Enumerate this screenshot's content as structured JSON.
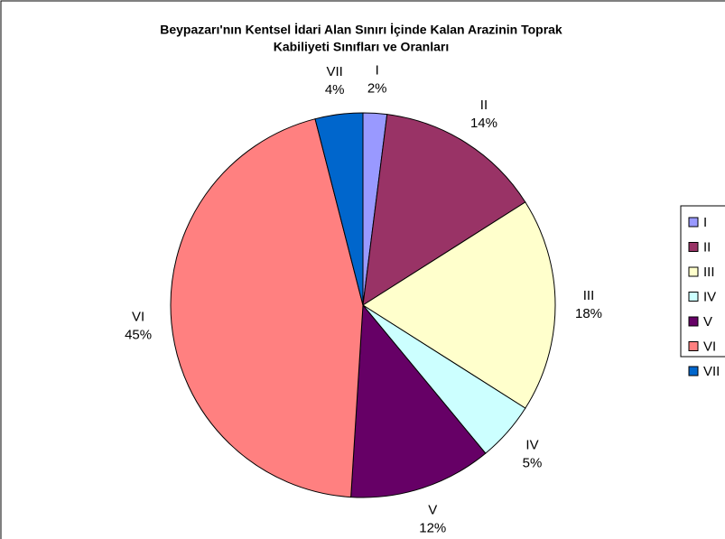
{
  "chart_data": {
    "type": "pie",
    "title": [
      "Beypazarı'nın Kentsel İdari Alan Sınırı İçinde Kalan Arazinin Toprak",
      "Kabiliyeti Sınıfları ve Oranları"
    ],
    "categories": [
      "I",
      "II",
      "III",
      "IV",
      "V",
      "VI",
      "VII"
    ],
    "values": [
      2,
      14,
      18,
      5,
      12,
      45,
      4
    ],
    "value_labels": [
      "2%",
      "14%",
      "18%",
      "5%",
      "12%",
      "45%",
      "4%"
    ],
    "colors": [
      "#9999ff",
      "#993366",
      "#ffffcc",
      "#ccffff",
      "#660066",
      "#ff8080",
      "#0066cc"
    ],
    "legend": "right"
  }
}
